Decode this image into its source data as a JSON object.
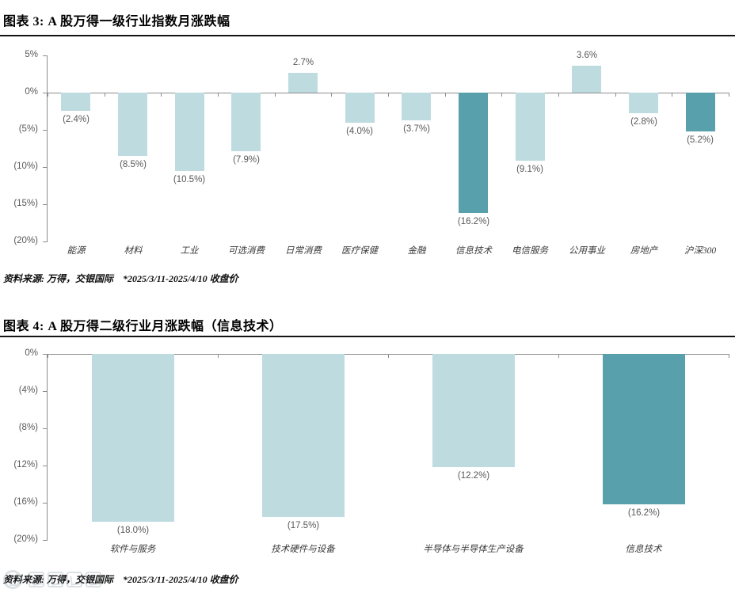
{
  "page": {
    "figure3": {
      "title": "图表 3: A 股万得一级行业指数月涨跌幅",
      "source": "资料来源: 万得，交银国际    *2025/3/11-2025/4/10 收盘价"
    },
    "figure4": {
      "title": "图表 4: A 股万得二级行业月涨跌幅（信息技术）",
      "source": "资料来源: 万得，交银国际    *2025/3/11-2025/4/10 收盘价"
    }
  },
  "colors": {
    "bar_light": "#BEDCE0",
    "bar_highlight": "#58A0AB",
    "axis": "#8C8C8C",
    "value_label": "#595959"
  },
  "chart_data": [
    {
      "type": "bar",
      "title": "图表 3: A 股万得一级行业指数月涨跌幅",
      "categories": [
        "能源",
        "材料",
        "工业",
        "可选消费",
        "日常消费",
        "医疗保健",
        "金融",
        "信息技术",
        "电信服务",
        "公用事业",
        "房地产",
        "沪深300"
      ],
      "values": [
        -2.4,
        -8.5,
        -10.5,
        -7.9,
        2.7,
        -4.0,
        -3.7,
        -16.2,
        -9.1,
        3.6,
        -2.8,
        -5.2
      ],
      "labels": [
        "(2.4%)",
        "(8.5%)",
        "(10.5%)",
        "(7.9%)",
        "2.7%",
        "(4.0%)",
        "(3.7%)",
        "(16.2%)",
        "(9.1%)",
        "3.6%",
        "(2.8%)",
        "(5.2%)"
      ],
      "highlight": [
        false,
        false,
        false,
        false,
        false,
        false,
        false,
        true,
        false,
        false,
        false,
        true
      ],
      "xlabel": "",
      "ylabel": "",
      "ylim": [
        -20,
        5
      ],
      "yticks": [
        5,
        0,
        -5,
        -10,
        -15,
        -20
      ],
      "ytick_labels": [
        "5%",
        "0%",
        "(5%)",
        "(10%)",
        "(15%)",
        "(20%)"
      ],
      "grid": false,
      "legend": null
    },
    {
      "type": "bar",
      "title": "图表 4: A 股万得二级行业月涨跌幅（信息技术）",
      "categories": [
        "软件与服务",
        "技术硬件与设备",
        "半导体与半导体生产设备",
        "信息技术"
      ],
      "values": [
        -18.0,
        -17.5,
        -12.2,
        -16.2
      ],
      "labels": [
        "(18.0%)",
        "(17.5%)",
        "(12.2%)",
        "(16.2%)"
      ],
      "highlight": [
        false,
        false,
        false,
        true
      ],
      "xlabel": "",
      "ylabel": "",
      "ylim": [
        -20,
        0
      ],
      "yticks": [
        0,
        -4,
        -8,
        -12,
        -16,
        -20
      ],
      "ytick_labels": [
        "0%",
        "(4%)",
        "(8%)",
        "(12%)",
        "(16%)",
        "(20%)"
      ],
      "grid": false,
      "legend": null
    }
  ]
}
